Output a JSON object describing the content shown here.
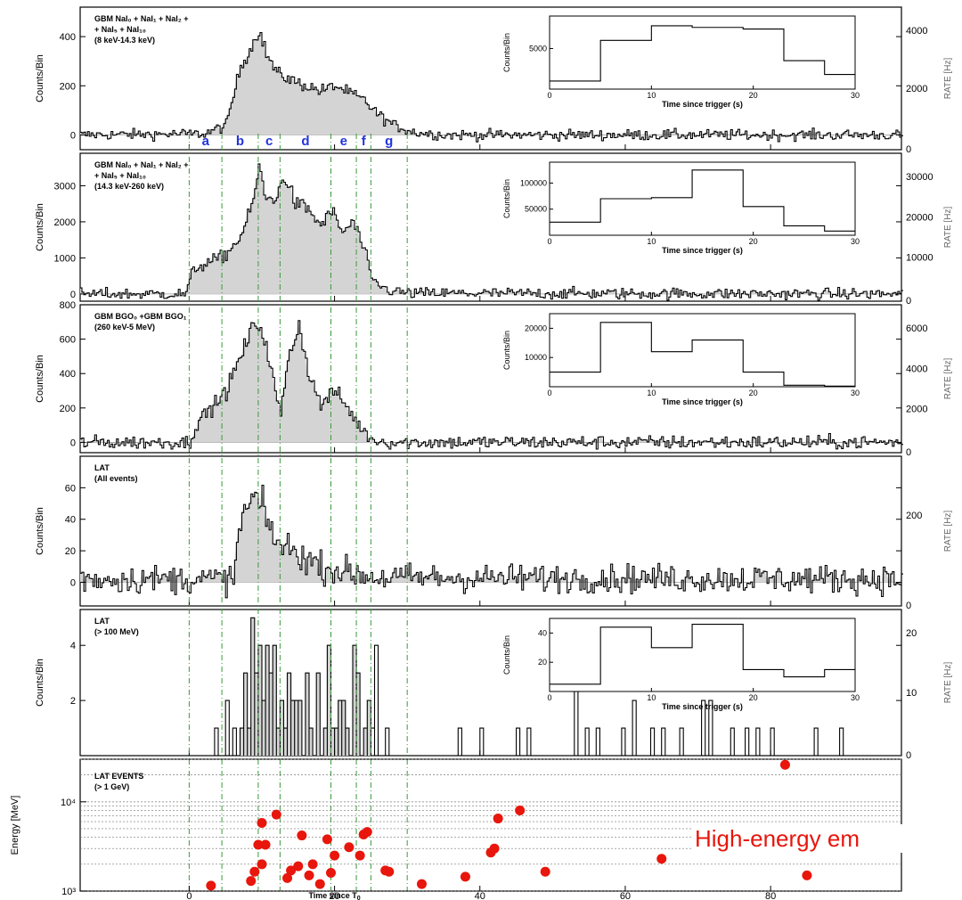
{
  "chart_data": {
    "type": "composite-lightcurve",
    "x_range": [
      -15,
      98
    ],
    "x_ticks": [
      0,
      20,
      40,
      60,
      80
    ],
    "xlabel": "Time since T",
    "xlabel_sub": "0",
    "period_markers": {
      "labels": [
        "a",
        "b",
        "c",
        "d",
        "e",
        "f",
        "g"
      ],
      "times": [
        0,
        4.5,
        9.5,
        12.5,
        19.5,
        23,
        25,
        30
      ]
    },
    "annotation": "High-energy em",
    "panels": [
      {
        "id": "nai-low",
        "title_lines": [
          "GBM NaI₀ + NaI₁ + NaI₂ +",
          "+ NaI₅ + NaI₁₀",
          "(8 keV-14.3 keV)"
        ],
        "ylabel": "Counts/Bin",
        "ylim": [
          -60,
          520
        ],
        "y_ticks": [
          0,
          200,
          400
        ],
        "right_ticks": [
          "4000",
          "2000",
          "0"
        ],
        "right_label": "RATE [Hz]",
        "profile": [
          [
            -15,
            0
          ],
          [
            2,
            5
          ],
          [
            5,
            40
          ],
          [
            7,
            280
          ],
          [
            8.5,
            360
          ],
          [
            9.5,
            430
          ],
          [
            10.5,
            330
          ],
          [
            12,
            250
          ],
          [
            15,
            210
          ],
          [
            18,
            180
          ],
          [
            20,
            200
          ],
          [
            22,
            170
          ],
          [
            24,
            140
          ],
          [
            26,
            80
          ],
          [
            28,
            40
          ],
          [
            31,
            10
          ],
          [
            35,
            0
          ],
          [
            98,
            0
          ]
        ],
        "noise": 22,
        "inset": {
          "ylabel": "Counts/Bin",
          "xlabel": "Time since trigger (s)",
          "xlim": [
            0,
            30
          ],
          "ylim": [
            0,
            9000
          ],
          "x_ticks": [
            0,
            10,
            20,
            30
          ],
          "y_ticks": [
            5000
          ],
          "edges": [
            0,
            5,
            10,
            14,
            19,
            23,
            27,
            30
          ],
          "values": [
            1000,
            6000,
            7800,
            7600,
            7400,
            3500,
            1800
          ]
        }
      },
      {
        "id": "nai-high",
        "title_lines": [
          "GBM NaI₀ + NaI₁ + NaI₂ +",
          "+ NaI₅ + NaI₁₀",
          "(14.3 keV-260 keV)"
        ],
        "ylabel": "Counts/Bin",
        "ylim": [
          -200,
          3900
        ],
        "y_ticks": [
          0,
          1000,
          2000,
          3000
        ],
        "right_ticks": [
          "30000",
          "20000",
          "10000",
          "0"
        ],
        "right_label": "RATE [Hz]",
        "profile": [
          [
            -15,
            0
          ],
          [
            -0.5,
            0
          ],
          [
            0.5,
            700
          ],
          [
            3,
            900
          ],
          [
            5,
            1100
          ],
          [
            7,
            1600
          ],
          [
            8.5,
            2400
          ],
          [
            9.5,
            3500
          ],
          [
            10.5,
            2600
          ],
          [
            12,
            2700
          ],
          [
            13,
            3300
          ],
          [
            14.5,
            2500
          ],
          [
            16,
            2400
          ],
          [
            18,
            1900
          ],
          [
            19.5,
            2300
          ],
          [
            21,
            1700
          ],
          [
            22.5,
            2000
          ],
          [
            24,
            1200
          ],
          [
            25,
            400
          ],
          [
            27,
            120
          ],
          [
            30,
            20
          ],
          [
            98,
            0
          ]
        ],
        "noise": 160,
        "inset": {
          "ylabel": "Counts/Bin",
          "xlabel": "Time since trigger (s)",
          "xlim": [
            0,
            30
          ],
          "ylim": [
            0,
            140000
          ],
          "x_ticks": [
            0,
            10,
            20,
            30
          ],
          "y_ticks": [
            50000,
            100000
          ],
          "edges": [
            0,
            5,
            10,
            14,
            19,
            23,
            27,
            30
          ],
          "values": [
            25000,
            70000,
            72000,
            125000,
            55000,
            18000,
            8000
          ]
        }
      },
      {
        "id": "bgo",
        "title_lines": [
          "GBM BGO₀ +GBM BGO₁",
          "(260 keV-5 MeV)"
        ],
        "ylabel": "Counts/Bin",
        "ylim": [
          -60,
          800
        ],
        "y_ticks": [
          0,
          200,
          400,
          600,
          800
        ],
        "right_ticks": [
          "6000",
          "4000",
          "2000",
          "0"
        ],
        "right_label": "RATE [Hz]",
        "profile": [
          [
            -15,
            0
          ],
          [
            0,
            0
          ],
          [
            1,
            120
          ],
          [
            3,
            200
          ],
          [
            5,
            300
          ],
          [
            7,
            500
          ],
          [
            9,
            700
          ],
          [
            10,
            650
          ],
          [
            11,
            450
          ],
          [
            12.5,
            150
          ],
          [
            13.5,
            500
          ],
          [
            15,
            680
          ],
          [
            16.5,
            380
          ],
          [
            18,
            220
          ],
          [
            20,
            300
          ],
          [
            22,
            180
          ],
          [
            23.5,
            80
          ],
          [
            25,
            20
          ],
          [
            27,
            0
          ],
          [
            98,
            0
          ]
        ],
        "noise": 40,
        "inset": {
          "ylabel": "Counts/Bin",
          "xlabel": "Time since trigger (s)",
          "xlim": [
            0,
            30
          ],
          "ylim": [
            0,
            25000
          ],
          "x_ticks": [
            0,
            10,
            20,
            30
          ],
          "y_ticks": [
            10000,
            20000
          ],
          "edges": [
            0,
            5,
            10,
            14,
            19,
            23,
            27,
            30
          ],
          "values": [
            5000,
            22000,
            12000,
            16000,
            5000,
            500,
            200
          ]
        }
      },
      {
        "id": "lat-all",
        "title_lines": [
          "LAT",
          "(All events)"
        ],
        "ylabel": "Counts/Bin",
        "ylim": [
          -15,
          80
        ],
        "y_ticks": [
          0,
          20,
          40,
          60
        ],
        "right_ticks": [
          "200",
          "0"
        ],
        "right_label": "RATE [Hz]",
        "profile": [
          [
            -15,
            2
          ],
          [
            6,
            2
          ],
          [
            7,
            40
          ],
          [
            9,
            55
          ],
          [
            10,
            45
          ],
          [
            12,
            25
          ],
          [
            15,
            18
          ],
          [
            18,
            10
          ],
          [
            22,
            6
          ],
          [
            26,
            3
          ],
          [
            98,
            2
          ]
        ],
        "noise": 9
      },
      {
        "id": "lat-100",
        "title_lines": [
          "LAT",
          "(> 100 MeV)"
        ],
        "ylabel": "Counts/Bin",
        "ylim": [
          0,
          5.3
        ],
        "y_ticks": [
          2,
          4
        ],
        "right_ticks": [
          "20",
          "10",
          "0"
        ],
        "right_label": "RATE [Hz]",
        "inset": {
          "ylabel": "Counts/Bin",
          "xlabel": "Time since trigger (s)",
          "xlim": [
            0,
            30
          ],
          "ylim": [
            0,
            50
          ],
          "x_ticks": [
            0,
            10,
            20,
            30
          ],
          "y_ticks": [
            20,
            40
          ],
          "edges": [
            0,
            5,
            10,
            14,
            19,
            23,
            27,
            30
          ],
          "values": [
            5,
            44,
            30,
            46,
            15,
            10,
            15
          ]
        }
      }
    ],
    "events_panel": {
      "title_lines": [
        "LAT EVENTS",
        "(> 1 GeV)"
      ],
      "ylabel": "Energy [MeV]",
      "ylim_log": [
        1000,
        30000
      ],
      "y_ticks": [
        {
          "v": 1000,
          "label": "10³"
        },
        {
          "v": 10000,
          "label": "10⁴"
        }
      ],
      "events": [
        [
          3,
          1150
        ],
        [
          8.5,
          1300
        ],
        [
          9,
          1650
        ],
        [
          9.5,
          3300
        ],
        [
          10,
          2000
        ],
        [
          10.5,
          3300
        ],
        [
          10,
          5800
        ],
        [
          12,
          7200
        ],
        [
          13.5,
          1400
        ],
        [
          14,
          1700
        ],
        [
          15,
          1900
        ],
        [
          15.5,
          4200
        ],
        [
          16.5,
          1500
        ],
        [
          17,
          2000
        ],
        [
          18,
          1200
        ],
        [
          19,
          3800
        ],
        [
          19.5,
          1600
        ],
        [
          20,
          2500
        ],
        [
          22,
          3100
        ],
        [
          23.5,
          2500
        ],
        [
          24,
          4300
        ],
        [
          24.5,
          4600
        ],
        [
          27,
          1700
        ],
        [
          27.5,
          1650
        ],
        [
          32,
          1200
        ],
        [
          38,
          1450
        ],
        [
          41.5,
          2700
        ],
        [
          42,
          3000
        ],
        [
          42.5,
          6500
        ],
        [
          45.5,
          8000
        ],
        [
          49,
          1650
        ],
        [
          65,
          2300
        ],
        [
          82,
          26000
        ],
        [
          85,
          1500
        ]
      ]
    }
  }
}
